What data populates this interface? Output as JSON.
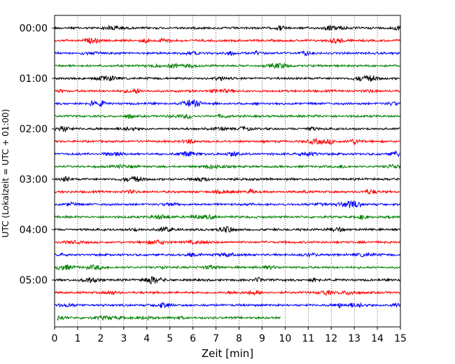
{
  "chart_data": {
    "type": "line",
    "subtype": "helicorder",
    "xlabel": "Zeit  [min]",
    "ylabel": "UTC (Lokalzeit = UTC + 01:00)",
    "xlim": [
      0,
      15
    ],
    "x_ticks": [
      0,
      1,
      2,
      3,
      4,
      5,
      6,
      7,
      8,
      9,
      10,
      11,
      12,
      13,
      14,
      15
    ],
    "y_tick_labels": [
      "00:00",
      "01:00",
      "02:00",
      "03:00",
      "04:00",
      "05:00"
    ],
    "trace_interval_minutes": 15,
    "trace_colors": [
      "#000000",
      "#ff0000",
      "#0000ff",
      "#008000"
    ],
    "grid": "vertical-dotted",
    "traces": [
      {
        "start": "00:00",
        "end_min": 15
      },
      {
        "start": "00:15",
        "end_min": 15
      },
      {
        "start": "00:30",
        "end_min": 15
      },
      {
        "start": "00:45",
        "end_min": 15
      },
      {
        "start": "01:00",
        "end_min": 15
      },
      {
        "start": "01:15",
        "end_min": 15
      },
      {
        "start": "01:30",
        "end_min": 15
      },
      {
        "start": "01:45",
        "end_min": 15
      },
      {
        "start": "02:00",
        "end_min": 15
      },
      {
        "start": "02:15",
        "end_min": 15
      },
      {
        "start": "02:30",
        "end_min": 15
      },
      {
        "start": "02:45",
        "end_min": 15
      },
      {
        "start": "03:00",
        "end_min": 15
      },
      {
        "start": "03:15",
        "end_min": 15
      },
      {
        "start": "03:30",
        "end_min": 15
      },
      {
        "start": "03:45",
        "end_min": 15
      },
      {
        "start": "04:00",
        "end_min": 15
      },
      {
        "start": "04:15",
        "end_min": 15
      },
      {
        "start": "04:30",
        "end_min": 15
      },
      {
        "start": "04:45",
        "end_min": 15
      },
      {
        "start": "05:00",
        "end_min": 15
      },
      {
        "start": "05:15",
        "end_min": 15
      },
      {
        "start": "05:30",
        "end_min": 15
      },
      {
        "start": "05:45",
        "end_min": 9.8
      }
    ]
  }
}
